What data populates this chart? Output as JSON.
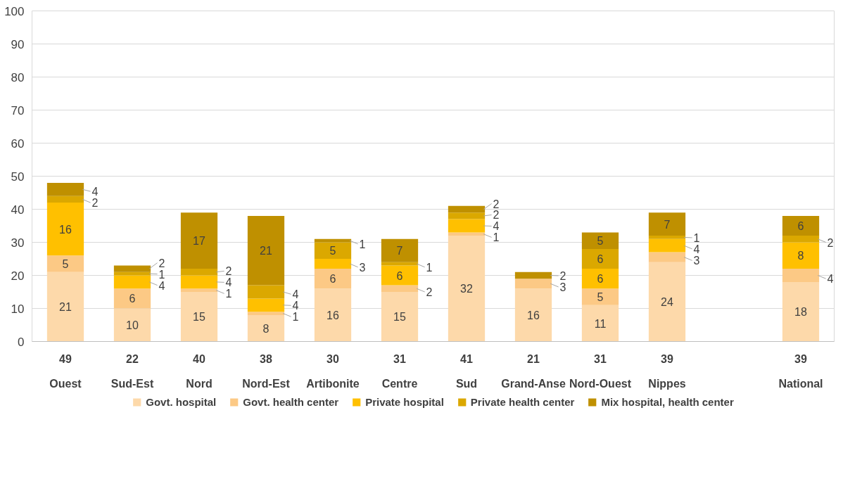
{
  "chart_data": {
    "type": "bar",
    "stacked": true,
    "categories": [
      "Ouest",
      "Sud-Est",
      "Nord",
      "Nord-Est",
      "Artibonite",
      "Centre",
      "Sud",
      "Grand-Anse",
      "Nord-Ouest",
      "Nippes",
      null,
      "National"
    ],
    "totals": [
      "49",
      "22",
      "40",
      "38",
      "30",
      "31",
      "41",
      "21",
      "31",
      "39",
      null,
      "39"
    ],
    "series": [
      {
        "name": "Govt. hospital",
        "color": "#fdd9aa",
        "values": [
          21,
          10,
          15,
          8,
          16,
          15,
          32,
          16,
          11,
          24,
          null,
          18
        ]
      },
      {
        "name": "Govt. health center",
        "color": "#fcc985",
        "values": [
          5,
          6,
          1,
          1,
          6,
          2,
          1,
          3,
          5,
          3,
          null,
          4
        ]
      },
      {
        "name": "Private hospital",
        "color": "#ffc000",
        "values": [
          16,
          4,
          4,
          4,
          3,
          6,
          4,
          null,
          6,
          4,
          null,
          8
        ]
      },
      {
        "name": "Private health center",
        "color": "#dba800",
        "values": [
          2,
          1,
          2,
          4,
          5,
          1,
          2,
          null,
          6,
          1,
          null,
          2
        ]
      },
      {
        "name": "Mix hospital, health center",
        "color": "#bf9000",
        "values": [
          4,
          2,
          17,
          21,
          1,
          7,
          2,
          2,
          5,
          7,
          null,
          6
        ]
      }
    ],
    "ylim": [
      0,
      100
    ],
    "yticks": [
      0,
      10,
      20,
      30,
      40,
      50,
      60,
      70,
      80,
      90,
      100
    ],
    "grid": "y",
    "legend": "bottom",
    "data_labels": true
  }
}
